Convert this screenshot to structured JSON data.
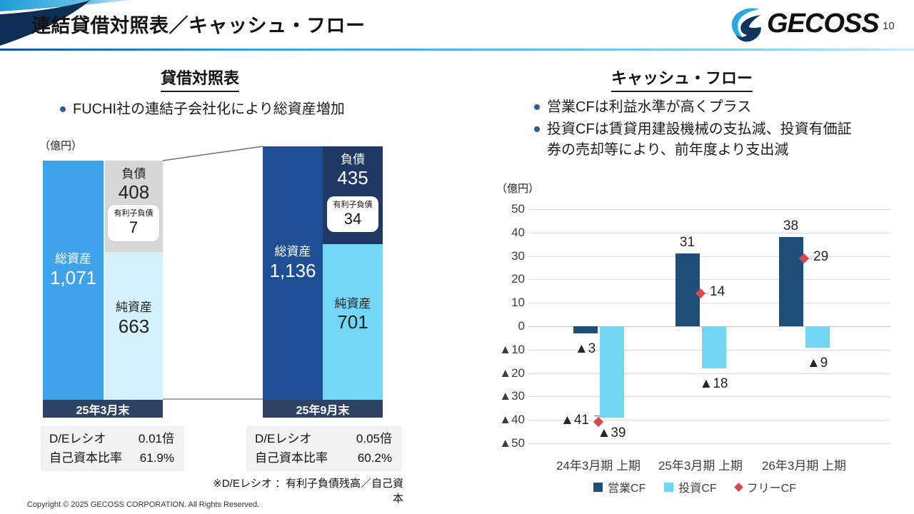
{
  "header": {
    "title": "連結貸借対照表／キャッシュ・フロー",
    "logo_text": "GECOSS",
    "page_number": "10"
  },
  "balance_sheet": {
    "heading": "貸借対照表",
    "bullet": "FUCHI社の連結子会社化により総資産増加",
    "unit_label": "（億円）",
    "footnote": "※D/Eレシオ ：有利子負債残高／自己資本",
    "groups": [
      {
        "date": "25年3月末",
        "total_label": "総資産",
        "total_value": "1,071",
        "liabilities_label": "負債",
        "liabilities_value": "408",
        "interest_debt_label": "有利子負債",
        "interest_debt_value": "7",
        "equity_label": "純資産",
        "equity_value": "663",
        "de_ratio_label": "D/Eレシオ",
        "de_ratio_value": "0.01倍",
        "equity_ratio_label": "自己資本比率",
        "equity_ratio_value": "61.9%"
      },
      {
        "date": "25年9月末",
        "total_label": "総資産",
        "total_value": "1,136",
        "liabilities_label": "負債",
        "liabilities_value": "435",
        "interest_debt_label": "有利子負債",
        "interest_debt_value": "34",
        "equity_label": "純資産",
        "equity_value": "701",
        "de_ratio_label": "D/Eレシオ",
        "de_ratio_value": "0.05倍",
        "equity_ratio_label": "自己資本比率",
        "equity_ratio_value": "60.2%"
      }
    ]
  },
  "cash_flow": {
    "heading": "キャッシュ・フロー",
    "bullets": [
      "営業CFは利益水準が高くプラス",
      "投資CFは賃貸用建設機械の支払減、投資有価証券の売却等により、前年度より支出減"
    ],
    "unit_label": "（億円）",
    "value_labels": {
      "operating": [
        "▲3",
        "31",
        "38"
      ],
      "investing": [
        "▲39",
        "▲18",
        "▲9"
      ],
      "free": [
        "▲41",
        "14",
        "29"
      ]
    }
  },
  "chart_data": [
    {
      "type": "bar",
      "subtype": "stacked-balance-sheet",
      "title": "貸借対照表",
      "unit": "億円",
      "categories": [
        "25年3月末",
        "25年9月末"
      ],
      "series": [
        {
          "name": "総資産",
          "values": [
            1071,
            1136
          ]
        },
        {
          "name": "負債",
          "values": [
            408,
            435
          ]
        },
        {
          "name": "有利子負債",
          "values": [
            7,
            34
          ]
        },
        {
          "name": "純資産",
          "values": [
            663,
            701
          ]
        }
      ],
      "metrics": [
        {
          "name": "D/Eレシオ",
          "values": [
            "0.01倍",
            "0.05倍"
          ]
        },
        {
          "name": "自己資本比率",
          "values": [
            "61.9%",
            "60.2%"
          ]
        }
      ],
      "colors": {
        "total_prev": "#3FA3EC",
        "total_curr": "#1E4E94",
        "liabilities_prev": "#D7D7D7",
        "liabilities_curr": "#1F3864",
        "equity_prev": "#D5F1FB",
        "equity_curr": "#74D6F5",
        "date_band": "#2F4366"
      }
    },
    {
      "type": "bar",
      "title": "キャッシュ・フロー",
      "unit": "億円",
      "categories": [
        "24年3月期 上期",
        "25年3月期 上期",
        "26年3月期 上期"
      ],
      "series": [
        {
          "name": "営業CF",
          "kind": "bar",
          "color": "#1F4E79",
          "values": [
            -3,
            31,
            38
          ]
        },
        {
          "name": "投資CF",
          "kind": "bar",
          "color": "#72D5F2",
          "values": [
            -39,
            -18,
            -9
          ]
        },
        {
          "name": "フリーCF",
          "kind": "scatter",
          "marker": "diamond",
          "color": "#D9484E",
          "values": [
            -41,
            14,
            29
          ]
        }
      ],
      "ylim": [
        -50,
        50
      ],
      "ytick_step": 10,
      "negative_prefix": "▲",
      "grid": true,
      "legend_position": "bottom"
    }
  ],
  "footer": {
    "copyright": "Copyright © 2025 GECOSS CORPORATION. All Rights Reserved."
  }
}
